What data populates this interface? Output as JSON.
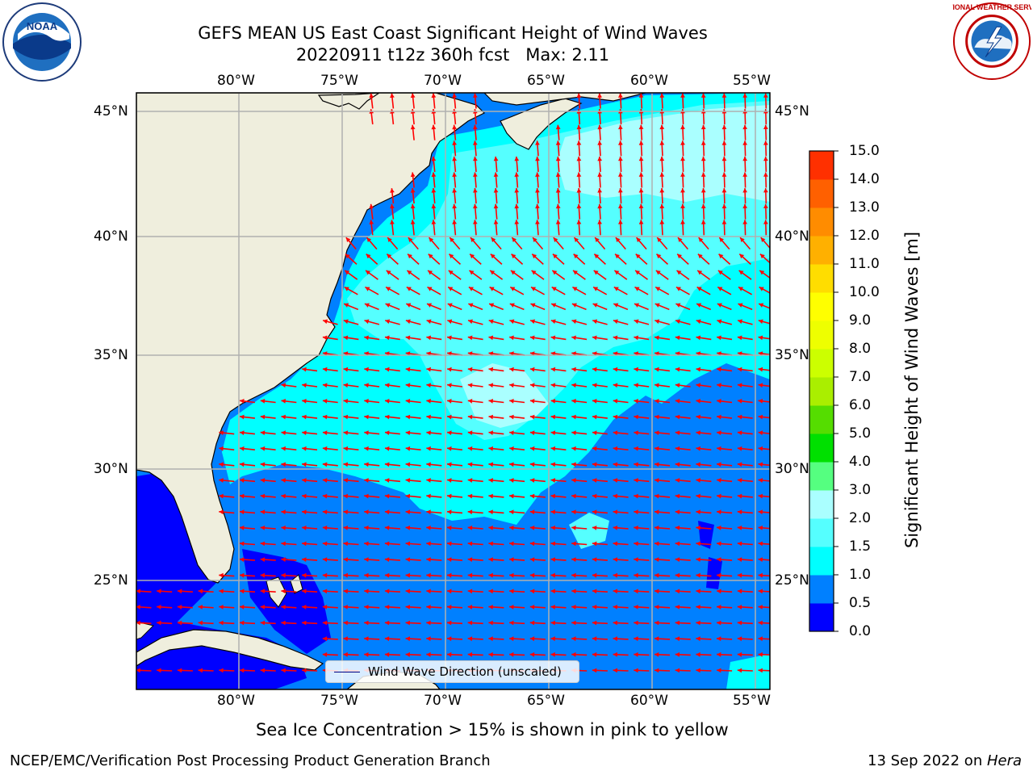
{
  "title": {
    "line1": "GEFS MEAN US East Coast Significant Height of Wind Waves",
    "line2": "20220911 t12z 360h fcst   Max: 2.11"
  },
  "map": {
    "lon_labels": [
      "80°W",
      "75°W",
      "70°W",
      "65°W",
      "60°W",
      "55°W"
    ],
    "lat_labels": [
      "45°N",
      "40°N",
      "35°N",
      "30°N",
      "25°N"
    ],
    "colors": {
      "land": "#efeedd",
      "coast": "#000000",
      "grid": "#b0b0b0",
      "arrow": "#ff0000"
    },
    "shading": [
      {
        "value_m": 0.0,
        "color": "#0000ff"
      },
      {
        "value_m": 0.5,
        "color": "#0080ff"
      },
      {
        "value_m": 1.0,
        "color": "#00ffff"
      },
      {
        "value_m": 1.5,
        "color": "#55ffff"
      },
      {
        "value_m": 2.0,
        "color": "#aaffff"
      }
    ]
  },
  "legend": {
    "label": "Wind Wave Direction (unscaled)"
  },
  "colorbar": {
    "ticks": [
      "0.0",
      "0.5",
      "1.0",
      "1.5",
      "2.0",
      "3.0",
      "4.0",
      "5.0",
      "6.0",
      "7.0",
      "8.0",
      "9.0",
      "10.0",
      "11.0",
      "12.0",
      "13.0",
      "14.0",
      "15.0"
    ],
    "colors": [
      "#0000ff",
      "#0080ff",
      "#00ffff",
      "#55ffff",
      "#aaffff",
      "#55ff80",
      "#00e000",
      "#55dd00",
      "#aaee00",
      "#ccff00",
      "#eeff00",
      "#ffff00",
      "#ffdd00",
      "#ffb000",
      "#ff8c00",
      "#ff6000",
      "#ff3000",
      "#ff0000"
    ],
    "label": "Significant Height of Wind Waves [m]"
  },
  "note": "Sea Ice Concentration > 15% is shown in pink to yellow",
  "footer": {
    "left": "NCEP/EMC/Verification Post Processing Product Generation Branch",
    "date": "13 Sep 2022 on ",
    "host": "Hera"
  },
  "logos": {
    "noaa": "NOAA",
    "nws": "NATIONAL WEATHER SERVICE"
  }
}
